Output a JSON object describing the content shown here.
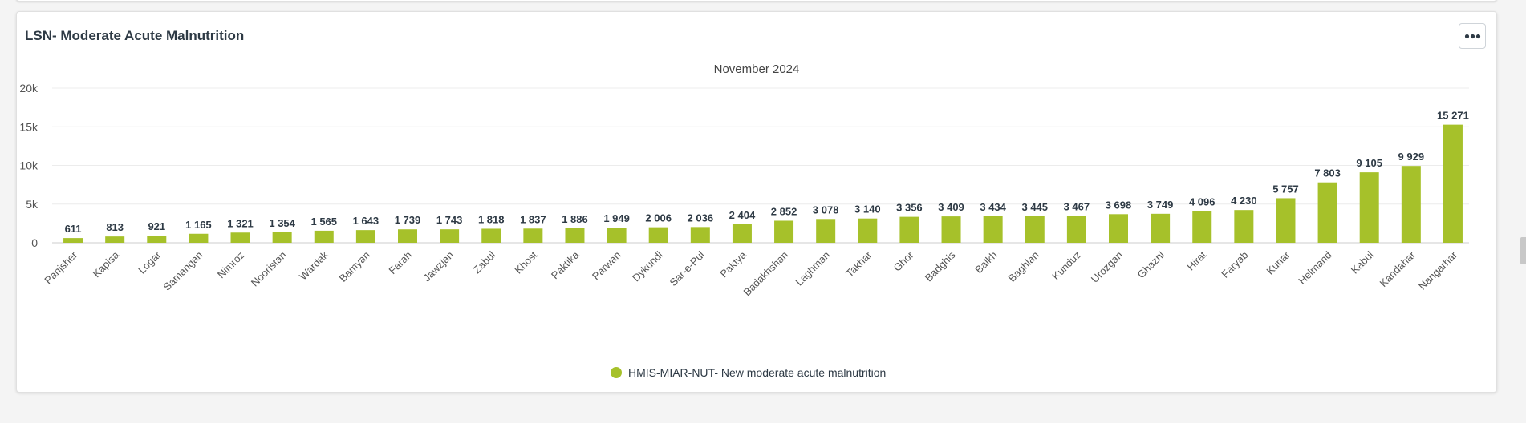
{
  "card": {
    "title": "LSN- Moderate Acute Malnutrition",
    "menu_icon": "ellipsis-icon"
  },
  "colors": {
    "bar": "#a6c12a",
    "grid": "#ececec",
    "axis_text": "#555555",
    "label_text": "#2e3a45"
  },
  "chart_data": {
    "type": "bar",
    "title": "",
    "subtitle": "November 2024",
    "xlabel": "",
    "ylabel": "",
    "ylim": [
      0,
      20000
    ],
    "yticks": [
      0,
      5000,
      10000,
      15000,
      20000
    ],
    "ytick_labels": [
      "0",
      "5k",
      "10k",
      "15k",
      "20k"
    ],
    "grid": true,
    "legend_position": "bottom",
    "categories": [
      "Panjsher",
      "Kapisa",
      "Logar",
      "Samangan",
      "Nimroz",
      "Nooristan",
      "Wardak",
      "Bamyan",
      "Farah",
      "Jawzjan",
      "Zabul",
      "Khost",
      "Paktika",
      "Parwan",
      "Dykundi",
      "Sar-e-Pul",
      "Paktya",
      "Badakhshan",
      "Laghman",
      "Takhar",
      "Ghor",
      "Badghis",
      "Balkh",
      "Baghlan",
      "Kunduz",
      "Urozgan",
      "Ghazni",
      "Hirat",
      "Faryab",
      "Kunar",
      "Helmand",
      "Kabul",
      "Kandahar",
      "Nangarhar"
    ],
    "series": [
      {
        "name": "HMIS-MIAR-NUT- New moderate acute malnutrition",
        "values": [
          611,
          813,
          921,
          1165,
          1321,
          1354,
          1565,
          1643,
          1739,
          1743,
          1818,
          1837,
          1886,
          1949,
          2006,
          2036,
          2404,
          2852,
          3078,
          3140,
          3356,
          3409,
          3434,
          3445,
          3467,
          3698,
          3749,
          4096,
          4230,
          5757,
          7803,
          9105,
          9929,
          15271
        ],
        "data_labels": [
          "611",
          "813",
          "921",
          "1 165",
          "1 321",
          "1 354",
          "1 565",
          "1 643",
          "1 739",
          "1 743",
          "1 818",
          "1 837",
          "1 886",
          "1 949",
          "2 006",
          "2 036",
          "2 404",
          "2 852",
          "3 078",
          "3 140",
          "3 356",
          "3 409",
          "3 434",
          "3 445",
          "3 467",
          "3 698",
          "3 749",
          "4 096",
          "4 230",
          "5 757",
          "7 803",
          "9 105",
          "9 929",
          "15 271"
        ]
      }
    ]
  }
}
